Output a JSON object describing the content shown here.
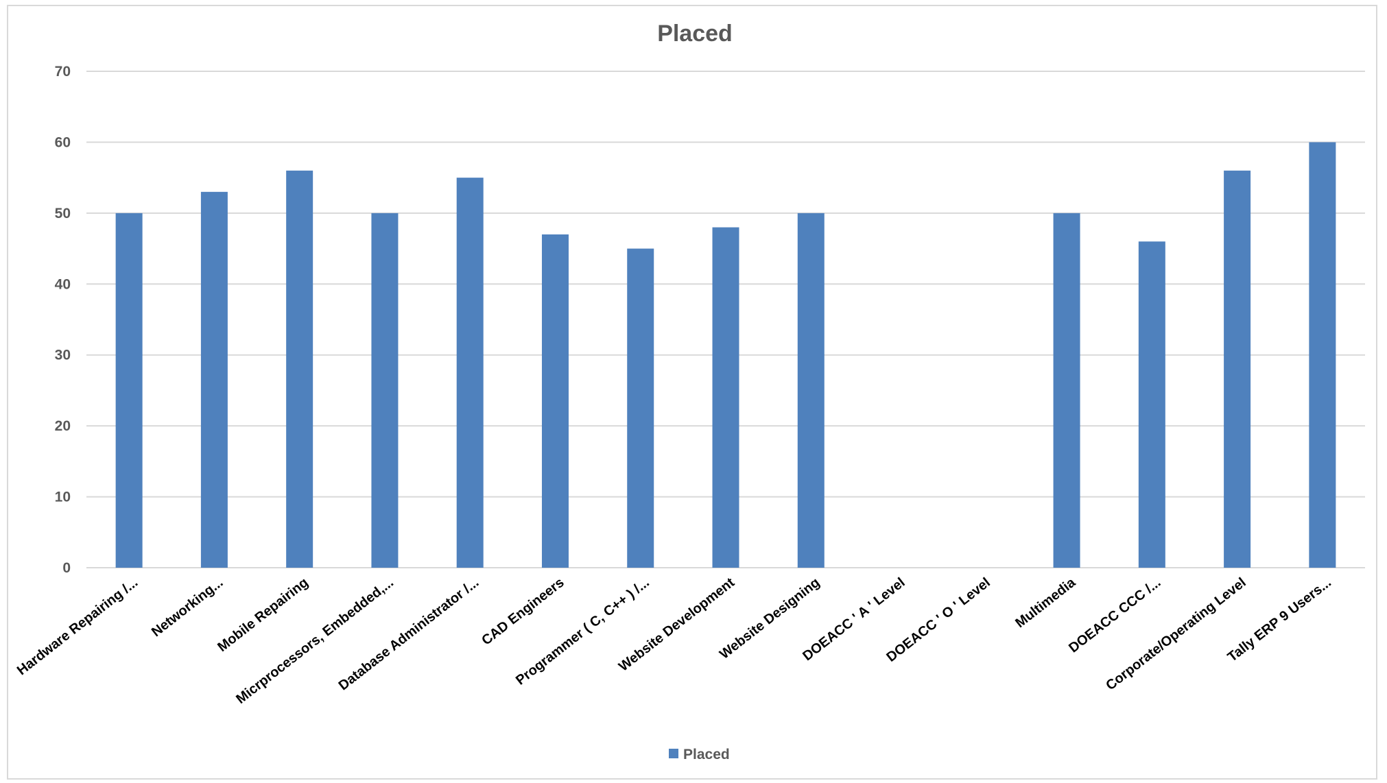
{
  "chart_data": {
    "type": "bar",
    "title": "Placed",
    "xlabel": "",
    "ylabel": "",
    "ylim": [
      0,
      70
    ],
    "yticks": [
      0,
      10,
      20,
      30,
      40,
      50,
      60,
      70
    ],
    "grid": true,
    "legend_position": "bottom",
    "categories": [
      "Hardware Repairing /...",
      "Networking...",
      "Mobile Repairing",
      "Micrprocessors, Embedded,...",
      "Database Administrator /...",
      "CAD Engineers",
      "Programmer ( C, C++ ) /...",
      "Website Development",
      "Website Designing",
      "DOEACC ' A ' Level",
      "DOEACC ' O ' Level",
      "Multimedia",
      "DOEACC CCC /...",
      "Corporate/Operating Level",
      "Tally ERP 9 Users..."
    ],
    "series": [
      {
        "name": "Placed",
        "color": "#4f81bd",
        "values": [
          50,
          53,
          56,
          50,
          55,
          47,
          45,
          48,
          50,
          0,
          0,
          50,
          46,
          56,
          60
        ]
      }
    ]
  }
}
